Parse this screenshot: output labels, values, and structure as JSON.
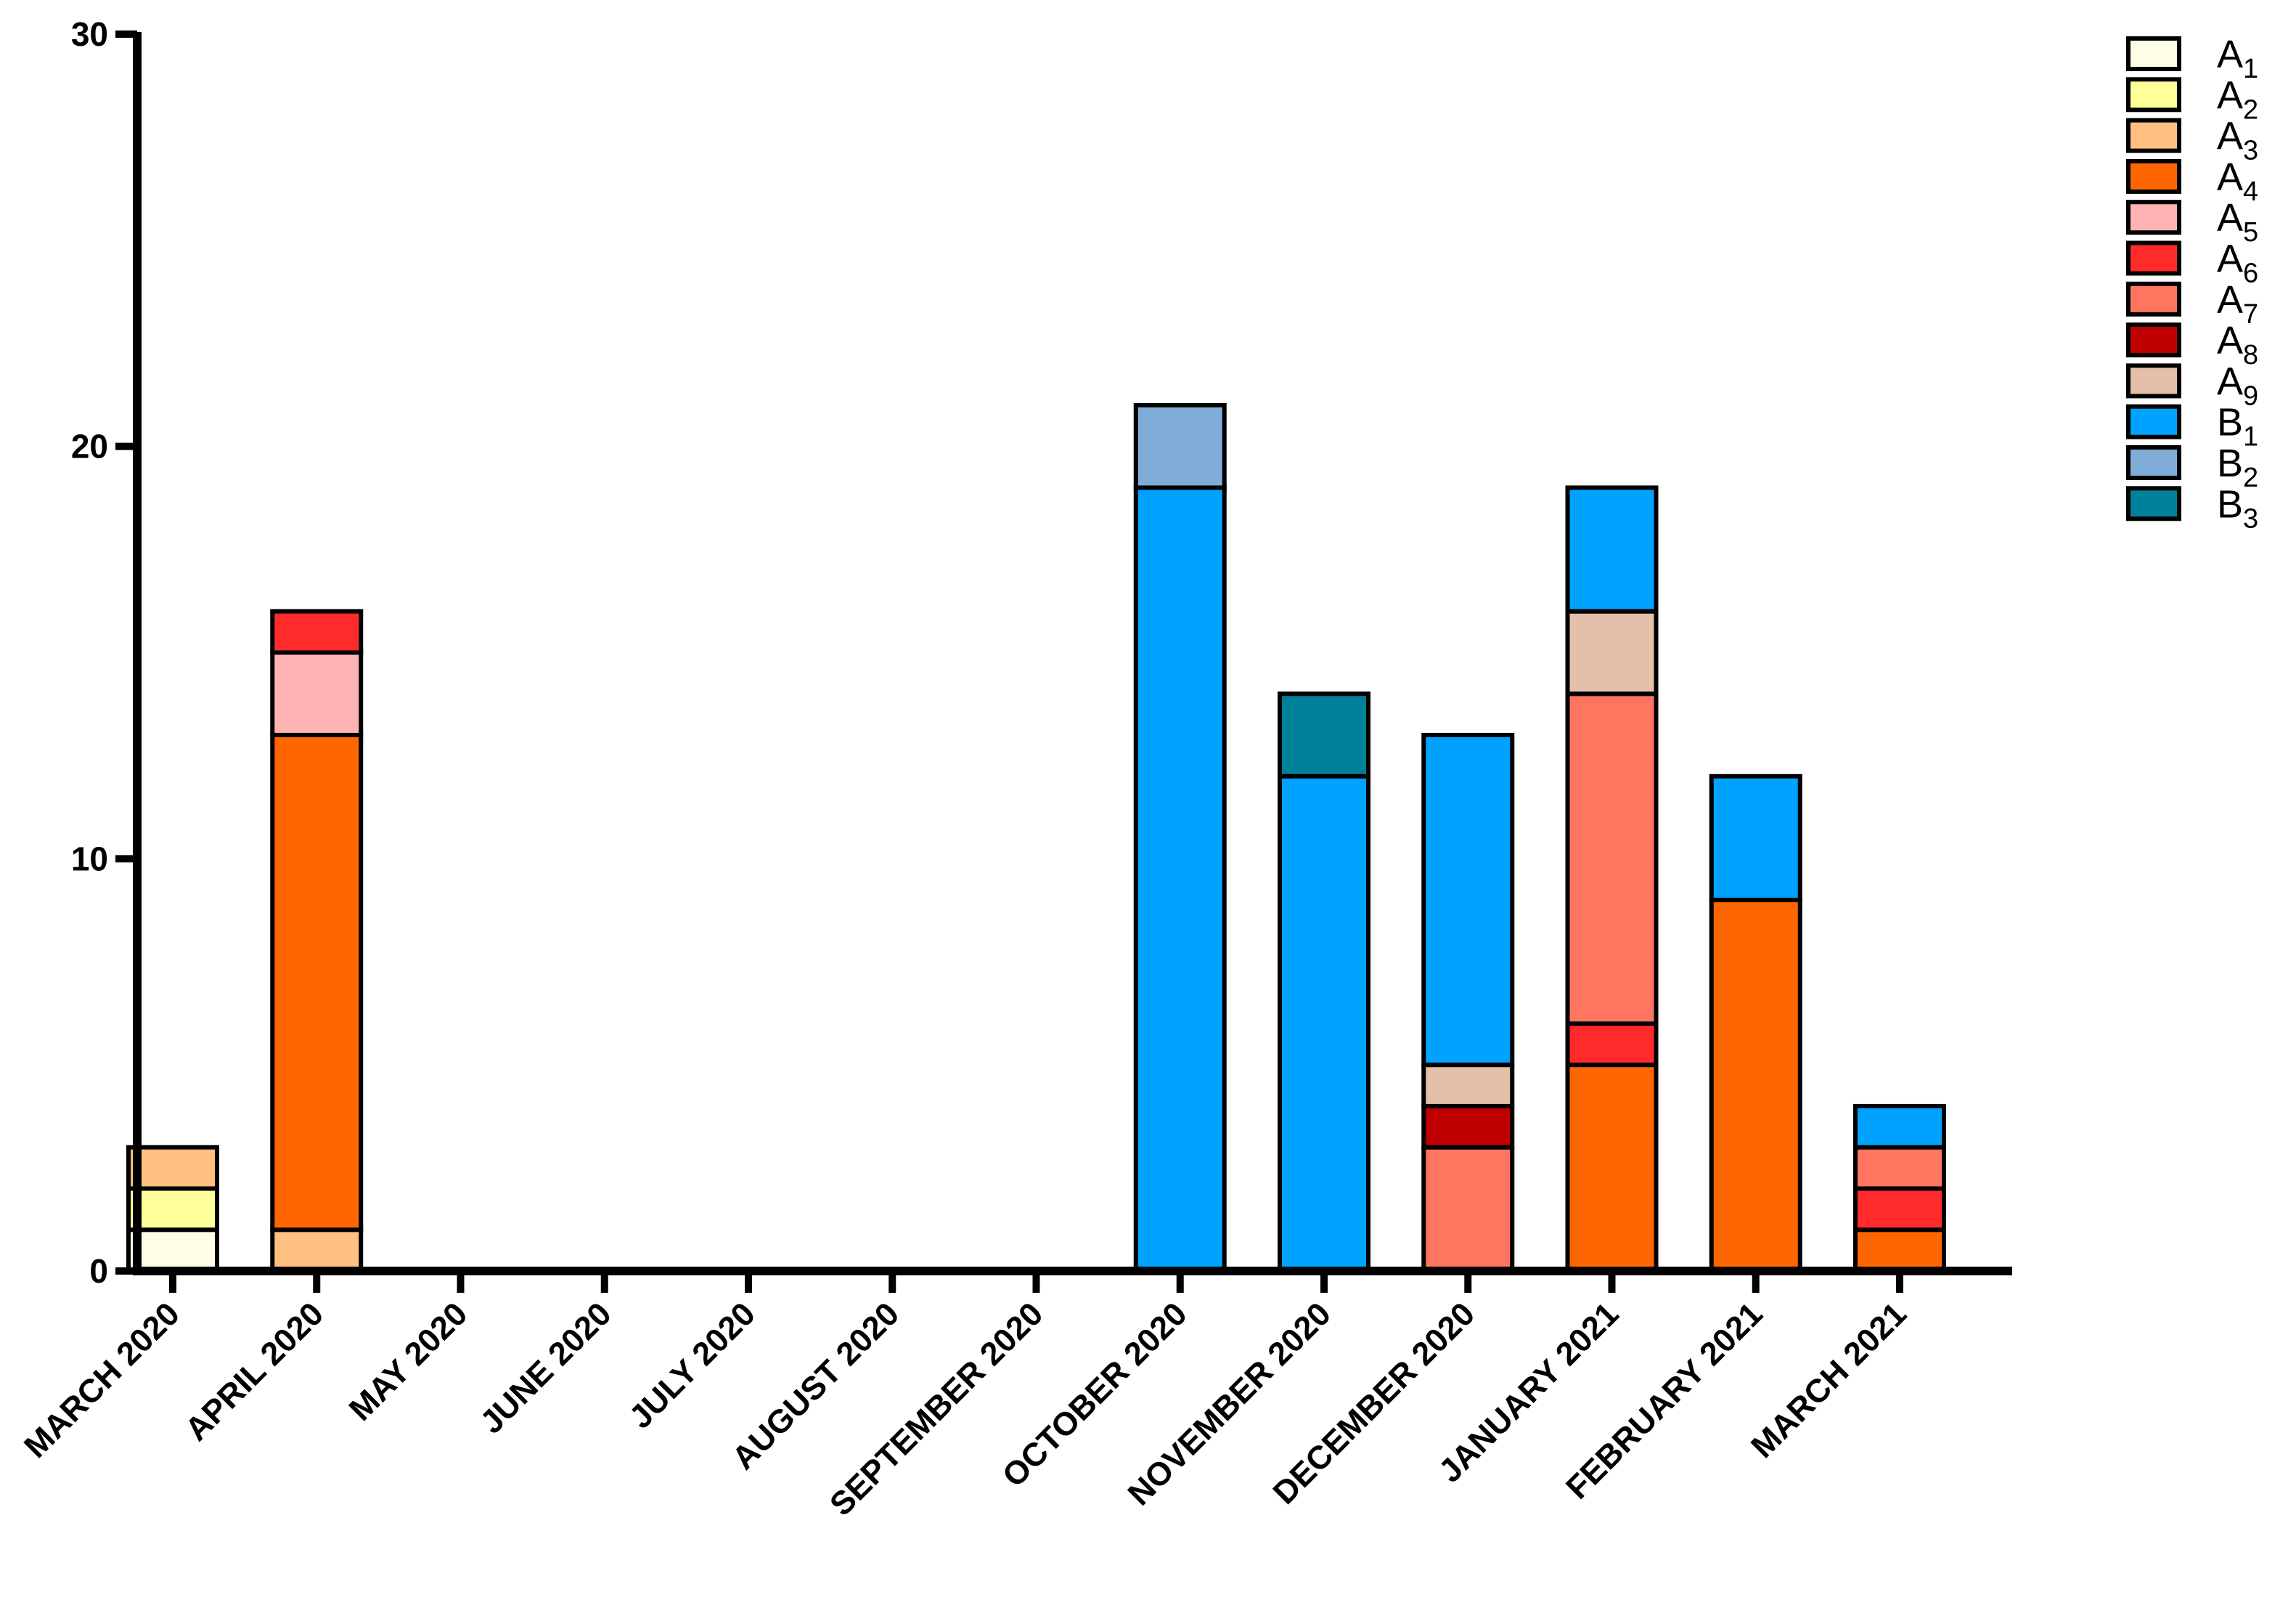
{
  "chart_data": {
    "type": "bar",
    "stacked": true,
    "title": "",
    "xlabel": "",
    "ylabel": "",
    "ylim": [
      0,
      30
    ],
    "yticks": [
      "0",
      "10",
      "20",
      "30"
    ],
    "legend_position": "top-right",
    "categories": [
      "MARCH 2020",
      "APRIL 2020",
      "MAY 2020",
      "JUNE 2020",
      "JULY 2020",
      "AUGUST 2020",
      "SEPTEMBER 2020",
      "OCTOBER 2020",
      "NOVEMBER 2020",
      "DECEMBER 2020",
      "JANUARY 2021",
      "FEBRUARY 2021",
      "MARCH 2021"
    ],
    "series": [
      {
        "name": "A",
        "sub": "1",
        "color": "#FFFDE5",
        "values": [
          1,
          0,
          0,
          0,
          0,
          0,
          0,
          0,
          0,
          0,
          0,
          0,
          0
        ]
      },
      {
        "name": "A",
        "sub": "2",
        "color": "#FFFF99",
        "values": [
          1,
          0,
          0,
          0,
          0,
          0,
          0,
          0,
          0,
          0,
          0,
          0,
          0
        ]
      },
      {
        "name": "A",
        "sub": "3",
        "color": "#FFC080",
        "values": [
          1,
          1,
          0,
          0,
          0,
          0,
          0,
          0,
          0,
          0,
          0,
          0,
          0
        ]
      },
      {
        "name": "A",
        "sub": "4",
        "color": "#FF6600",
        "values": [
          0,
          12,
          0,
          0,
          0,
          0,
          0,
          0,
          0,
          0,
          5,
          9,
          1
        ]
      },
      {
        "name": "A",
        "sub": "5",
        "color": "#FFB3B3",
        "values": [
          0,
          2,
          0,
          0,
          0,
          0,
          0,
          0,
          0,
          0,
          0,
          0,
          0
        ]
      },
      {
        "name": "A",
        "sub": "6",
        "color": "#FF2A2A",
        "values": [
          0,
          1,
          0,
          0,
          0,
          0,
          0,
          0,
          0,
          0,
          1,
          0,
          1
        ]
      },
      {
        "name": "A",
        "sub": "7",
        "color": "#FF7560",
        "values": [
          0,
          0,
          0,
          0,
          0,
          0,
          0,
          0,
          0,
          3,
          8,
          0,
          1
        ]
      },
      {
        "name": "A",
        "sub": "8",
        "color": "#C00000",
        "values": [
          0,
          0,
          0,
          0,
          0,
          0,
          0,
          0,
          0,
          1,
          0,
          0,
          0
        ]
      },
      {
        "name": "A",
        "sub": "9",
        "color": "#E4BFAA",
        "values": [
          0,
          0,
          0,
          0,
          0,
          0,
          0,
          0,
          0,
          1,
          2,
          0,
          0
        ]
      },
      {
        "name": "B",
        "sub": "1",
        "color": "#00A2FF",
        "values": [
          0,
          0,
          0,
          0,
          0,
          0,
          0,
          19,
          12,
          8,
          3,
          3,
          1
        ]
      },
      {
        "name": "B",
        "sub": "2",
        "color": "#7FADD8",
        "values": [
          0,
          0,
          0,
          0,
          0,
          0,
          0,
          2,
          0,
          0,
          0,
          0,
          0
        ]
      },
      {
        "name": "B",
        "sub": "3",
        "color": "#00819A",
        "values": [
          0,
          0,
          0,
          0,
          0,
          0,
          0,
          0,
          2,
          0,
          0,
          0,
          0
        ]
      }
    ]
  }
}
